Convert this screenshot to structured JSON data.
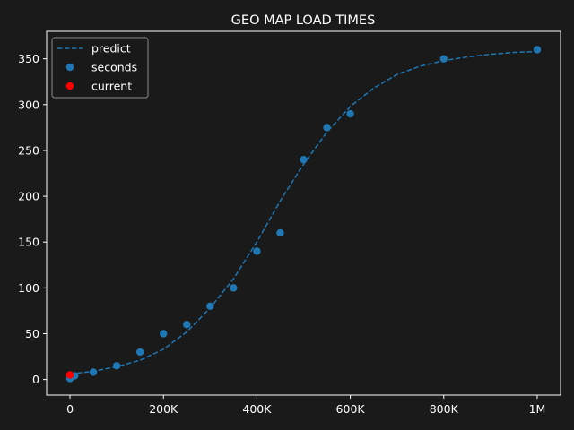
{
  "background": "#1a1a1a",
  "chart_data": {
    "type": "scatter",
    "title": "GEO MAP LOAD TIMES",
    "xlabel": "",
    "ylabel": "",
    "xlim": [
      -50000,
      1050000
    ],
    "ylim": [
      -17,
      380
    ],
    "x_ticks": [
      {
        "value": 0,
        "label": "0"
      },
      {
        "value": 200000,
        "label": "200K"
      },
      {
        "value": 400000,
        "label": "400K"
      },
      {
        "value": 600000,
        "label": "600K"
      },
      {
        "value": 800000,
        "label": "800K"
      },
      {
        "value": 1000000,
        "label": "1M"
      }
    ],
    "y_ticks": [
      {
        "value": 0,
        "label": "0"
      },
      {
        "value": 50,
        "label": "50"
      },
      {
        "value": 100,
        "label": "100"
      },
      {
        "value": 150,
        "label": "150"
      },
      {
        "value": 200,
        "label": "200"
      },
      {
        "value": 250,
        "label": "250"
      },
      {
        "value": 300,
        "label": "300"
      },
      {
        "value": 350,
        "label": "350"
      }
    ],
    "grid": false,
    "legend": {
      "position": "top-left",
      "entries": [
        {
          "label": "predict",
          "marker": "dashed-line",
          "color": "#1f77b4"
        },
        {
          "label": "seconds",
          "marker": "dot",
          "color": "#1f77b4"
        },
        {
          "label": "current",
          "marker": "dot",
          "color": "#ff0000"
        }
      ]
    },
    "series": [
      {
        "name": "predict",
        "kind": "line",
        "style": "dashed",
        "color": "#1f77b4",
        "points": [
          [
            0,
            6
          ],
          [
            50000,
            9
          ],
          [
            100000,
            14
          ],
          [
            150000,
            21
          ],
          [
            200000,
            33
          ],
          [
            250000,
            52
          ],
          [
            300000,
            78
          ],
          [
            350000,
            110
          ],
          [
            400000,
            150
          ],
          [
            450000,
            195
          ],
          [
            500000,
            235
          ],
          [
            550000,
            270
          ],
          [
            600000,
            298
          ],
          [
            650000,
            318
          ],
          [
            700000,
            333
          ],
          [
            750000,
            342
          ],
          [
            800000,
            348
          ],
          [
            850000,
            352
          ],
          [
            900000,
            355
          ],
          [
            950000,
            357
          ],
          [
            1000000,
            358
          ]
        ]
      },
      {
        "name": "seconds",
        "kind": "scatter",
        "color": "#1f77b4",
        "points": [
          [
            0,
            1
          ],
          [
            10000,
            4
          ],
          [
            50000,
            8
          ],
          [
            100000,
            15
          ],
          [
            150000,
            30
          ],
          [
            200000,
            50
          ],
          [
            250000,
            60
          ],
          [
            300000,
            80
          ],
          [
            350000,
            100
          ],
          [
            400000,
            140
          ],
          [
            450000,
            160
          ],
          [
            500000,
            240
          ],
          [
            550000,
            275
          ],
          [
            600000,
            290
          ],
          [
            800000,
            350
          ],
          [
            1000000,
            360
          ]
        ]
      },
      {
        "name": "current",
        "kind": "scatter",
        "color": "#ff0000",
        "points": [
          [
            0,
            5
          ]
        ]
      }
    ]
  }
}
